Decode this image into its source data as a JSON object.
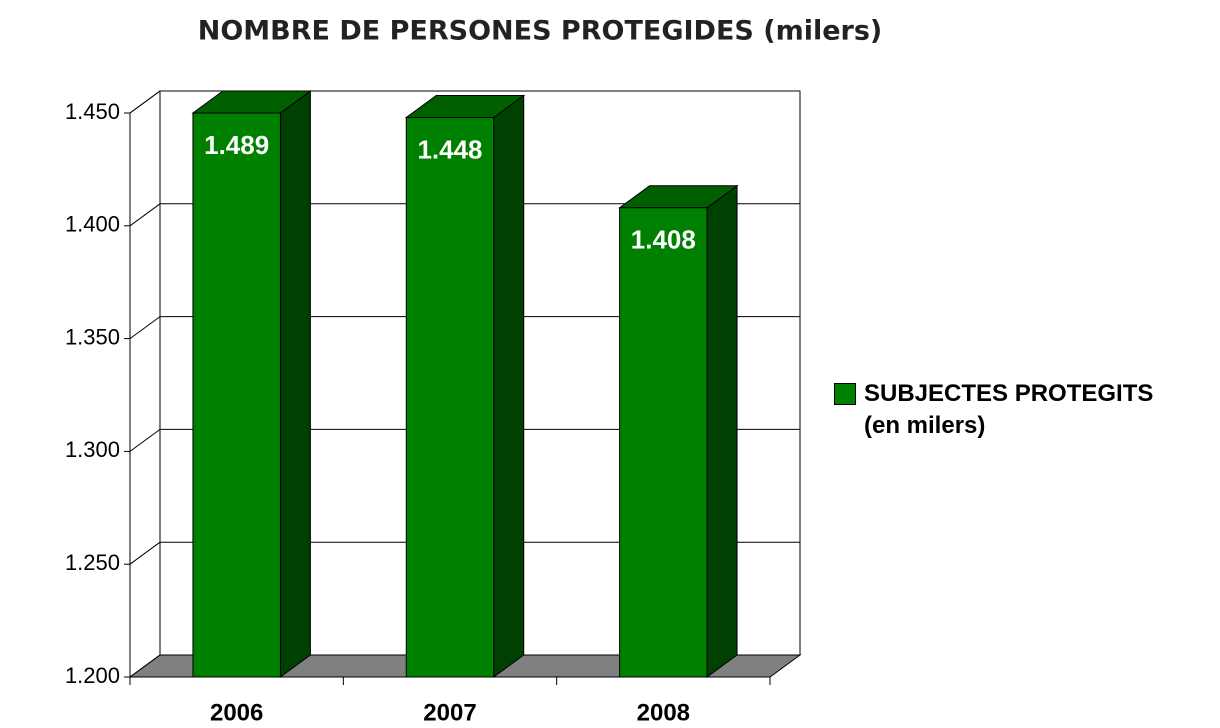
{
  "chart_data": {
    "type": "bar3d",
    "title": "NOMBRE DE PERSONES PROTEGIDES (milers)",
    "categories": [
      "2006",
      "2007",
      "2008"
    ],
    "series": [
      {
        "name": "SUBJECTES PROTEGITS (en milers)",
        "color": "#008000",
        "values": [
          1489,
          1448,
          1408
        ],
        "value_labels": [
          "1.489",
          "1.448",
          "1.408"
        ]
      }
    ],
    "ylim": [
      1200,
      1450
    ],
    "yticks": [
      {
        "value": 1200,
        "label": "1.200"
      },
      {
        "value": 1250,
        "label": "1.250"
      },
      {
        "value": 1300,
        "label": "1.300"
      },
      {
        "value": 1350,
        "label": "1.350"
      },
      {
        "value": 1400,
        "label": "1.400"
      },
      {
        "value": 1450,
        "label": "1.450"
      }
    ],
    "grid": true,
    "legend": "right"
  }
}
